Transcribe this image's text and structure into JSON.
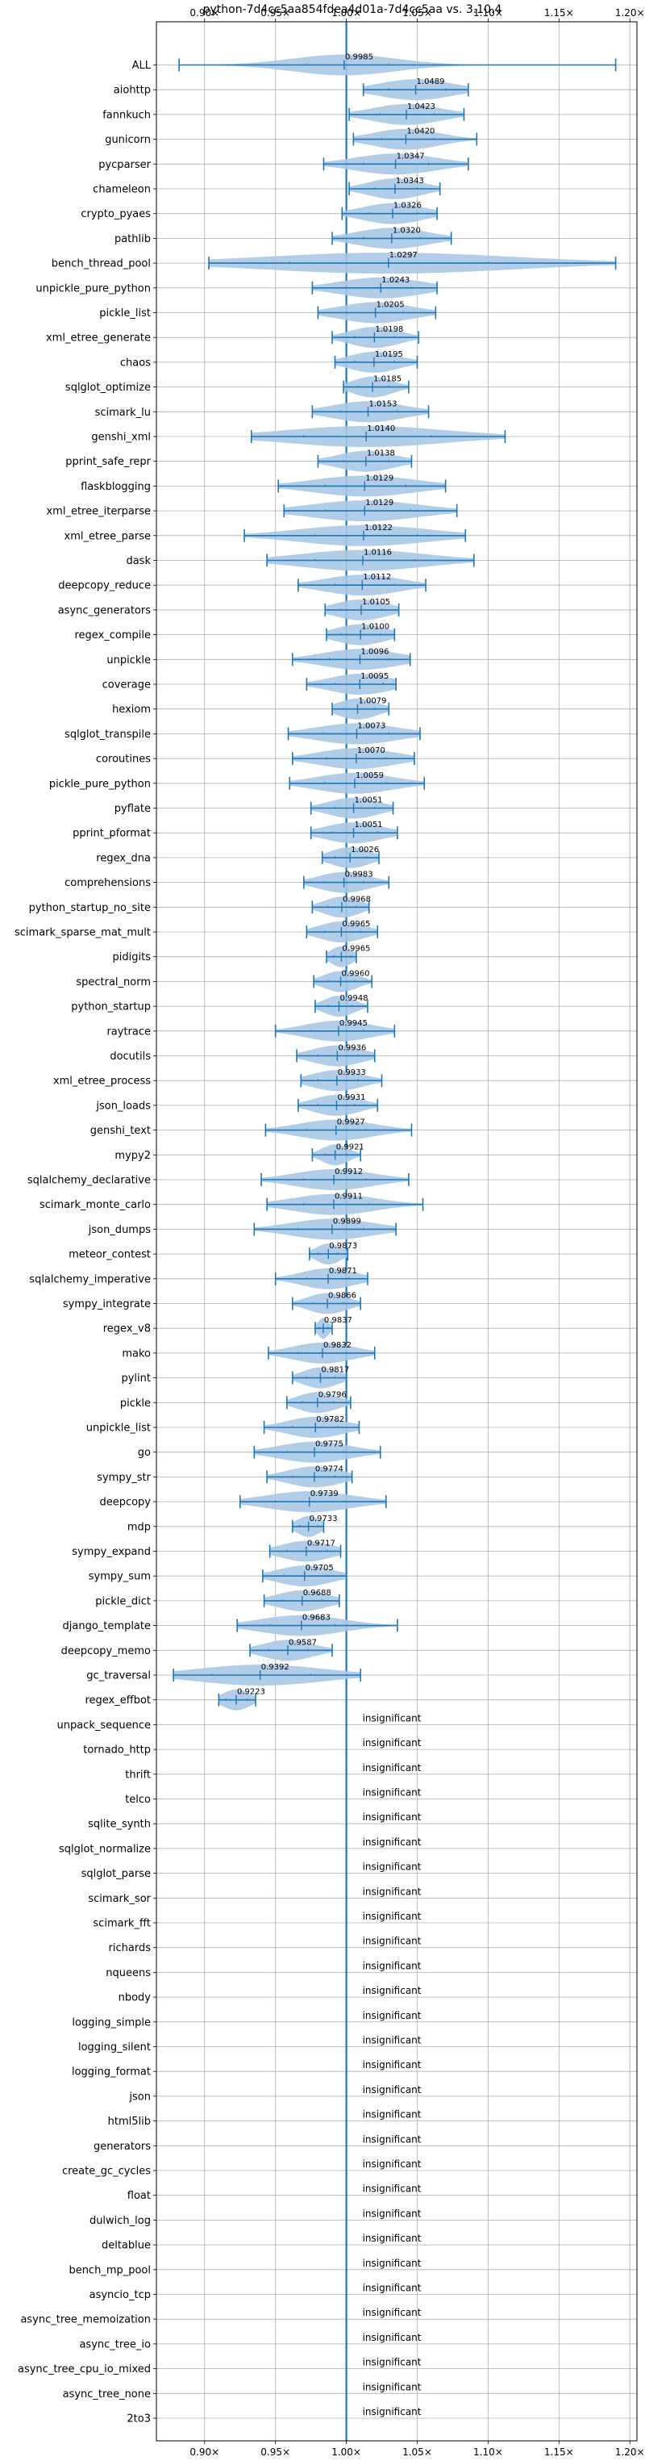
{
  "chart_data": {
    "type": "violin",
    "title": "python-7d4cc5aa854fdea4d01a-7d4cc5aa vs. 3.10.4",
    "xlabel": "",
    "ylabel": "",
    "xlim": [
      0.866,
      1.205
    ],
    "xticks": [
      0.9,
      0.95,
      1.0,
      1.05,
      1.1,
      1.15,
      1.2
    ],
    "xtick_labels": [
      "0.90×",
      "0.95×",
      "1.00×",
      "1.05×",
      "1.10×",
      "1.15×",
      "1.20×"
    ],
    "reference_line": 1.0,
    "grid": true,
    "colors": {
      "violin": "#a9c8e6",
      "line": "#1f77b4",
      "grid": "#b0b0b0"
    },
    "insignificant_label": "insignificant",
    "benchmarks": [
      {
        "name": "ALL",
        "label": "0.9985",
        "min": 0.882,
        "max": 1.19,
        "lo": 0.972,
        "hi": 1.03
      },
      {
        "name": "aiohttp",
        "label": "1.0489",
        "min": 1.012,
        "max": 1.086,
        "lo": 1.03,
        "hi": 1.07
      },
      {
        "name": "fannkuch",
        "label": "1.0423",
        "min": 1.002,
        "max": 1.083,
        "lo": 1.024,
        "hi": 1.062
      },
      {
        "name": "gunicorn",
        "label": "1.0420",
        "min": 1.005,
        "max": 1.092,
        "lo": 1.025,
        "hi": 1.062
      },
      {
        "name": "pycparser",
        "label": "1.0347",
        "min": 0.984,
        "max": 1.086,
        "lo": 1.012,
        "hi": 1.058
      },
      {
        "name": "chameleon",
        "label": "1.0343",
        "min": 1.002,
        "max": 1.066,
        "lo": 1.02,
        "hi": 1.05
      },
      {
        "name": "crypto_pyaes",
        "label": "1.0326",
        "min": 0.997,
        "max": 1.064,
        "lo": 1.016,
        "hi": 1.05
      },
      {
        "name": "pathlib",
        "label": "1.0320",
        "min": 0.99,
        "max": 1.074,
        "lo": 1.012,
        "hi": 1.052
      },
      {
        "name": "bench_thread_pool",
        "label": "1.0297",
        "min": 0.903,
        "max": 1.19,
        "lo": 0.96,
        "hi": 1.1
      },
      {
        "name": "unpickle_pure_python",
        "label": "1.0243",
        "min": 0.976,
        "max": 1.064,
        "lo": 1.0,
        "hi": 1.046
      },
      {
        "name": "pickle_list",
        "label": "1.0205",
        "min": 0.98,
        "max": 1.063,
        "lo": 1.0,
        "hi": 1.04
      },
      {
        "name": "xml_etree_generate",
        "label": "1.0198",
        "min": 0.99,
        "max": 1.051,
        "lo": 1.006,
        "hi": 1.034
      },
      {
        "name": "chaos",
        "label": "1.0195",
        "min": 0.992,
        "max": 1.05,
        "lo": 1.006,
        "hi": 1.034
      },
      {
        "name": "sqlglot_optimize",
        "label": "1.0185",
        "min": 0.998,
        "max": 1.044,
        "lo": 1.008,
        "hi": 1.03
      },
      {
        "name": "scimark_lu",
        "label": "1.0153",
        "min": 0.976,
        "max": 1.058,
        "lo": 0.996,
        "hi": 1.036
      },
      {
        "name": "genshi_xml",
        "label": "1.0140",
        "min": 0.933,
        "max": 1.112,
        "lo": 0.97,
        "hi": 1.06
      },
      {
        "name": "pprint_safe_repr",
        "label": "1.0138",
        "min": 0.98,
        "max": 1.046,
        "lo": 0.998,
        "hi": 1.03
      },
      {
        "name": "flaskblogging",
        "label": "1.0129",
        "min": 0.952,
        "max": 1.07,
        "lo": 0.985,
        "hi": 1.042
      },
      {
        "name": "xml_etree_iterparse",
        "label": "1.0129",
        "min": 0.956,
        "max": 1.078,
        "lo": 0.985,
        "hi": 1.045
      },
      {
        "name": "xml_etree_parse",
        "label": "1.0122",
        "min": 0.928,
        "max": 1.084,
        "lo": 0.978,
        "hi": 1.05
      },
      {
        "name": "dask",
        "label": "1.0116",
        "min": 0.944,
        "max": 1.09,
        "lo": 0.978,
        "hi": 1.048
      },
      {
        "name": "deepcopy_reduce",
        "label": "1.0112",
        "min": 0.966,
        "max": 1.056,
        "lo": 0.992,
        "hi": 1.034
      },
      {
        "name": "async_generators",
        "label": "1.0105",
        "min": 0.985,
        "max": 1.037,
        "lo": 0.996,
        "hi": 1.025
      },
      {
        "name": "regex_compile",
        "label": "1.0100",
        "min": 0.986,
        "max": 1.034,
        "lo": 0.996,
        "hi": 1.024
      },
      {
        "name": "unpickle",
        "label": "1.0096",
        "min": 0.962,
        "max": 1.045,
        "lo": 0.988,
        "hi": 1.03
      },
      {
        "name": "coverage",
        "label": "1.0095",
        "min": 0.972,
        "max": 1.035,
        "lo": 0.992,
        "hi": 1.026
      },
      {
        "name": "hexiom",
        "label": "1.0079",
        "min": 0.99,
        "max": 1.03,
        "lo": 0.998,
        "hi": 1.02
      },
      {
        "name": "sqlglot_transpile",
        "label": "1.0073",
        "min": 0.959,
        "max": 1.052,
        "lo": 0.984,
        "hi": 1.03
      },
      {
        "name": "coroutines",
        "label": "1.0070",
        "min": 0.962,
        "max": 1.048,
        "lo": 0.986,
        "hi": 1.028
      },
      {
        "name": "pickle_pure_python",
        "label": "1.0059",
        "min": 0.96,
        "max": 1.055,
        "lo": 0.985,
        "hi": 1.028
      },
      {
        "name": "pyflate",
        "label": "1.0051",
        "min": 0.975,
        "max": 1.033,
        "lo": 0.992,
        "hi": 1.02
      },
      {
        "name": "pprint_pformat",
        "label": "1.0051",
        "min": 0.975,
        "max": 1.036,
        "lo": 0.99,
        "hi": 1.022
      },
      {
        "name": "regex_dna",
        "label": "1.0026",
        "min": 0.983,
        "max": 1.023,
        "lo": 0.992,
        "hi": 1.014
      },
      {
        "name": "comprehensions",
        "label": "0.9983",
        "min": 0.97,
        "max": 1.03,
        "lo": 0.984,
        "hi": 1.012
      },
      {
        "name": "python_startup_no_site",
        "label": "0.9968",
        "min": 0.976,
        "max": 1.016,
        "lo": 0.987,
        "hi": 1.007
      },
      {
        "name": "scimark_sparse_mat_mult",
        "label": "0.9965",
        "min": 0.972,
        "max": 1.022,
        "lo": 0.985,
        "hi": 1.01
      },
      {
        "name": "pidigits",
        "label": "0.9965",
        "min": 0.986,
        "max": 1.007,
        "lo": 0.991,
        "hi": 1.003
      },
      {
        "name": "spectral_norm",
        "label": "0.9960",
        "min": 0.977,
        "max": 1.018,
        "lo": 0.987,
        "hi": 1.006
      },
      {
        "name": "python_startup",
        "label": "0.9948",
        "min": 0.978,
        "max": 1.015,
        "lo": 0.987,
        "hi": 1.004
      },
      {
        "name": "raytrace",
        "label": "0.9945",
        "min": 0.95,
        "max": 1.034,
        "lo": 0.975,
        "hi": 1.012
      },
      {
        "name": "docutils",
        "label": "0.9936",
        "min": 0.965,
        "max": 1.02,
        "lo": 0.98,
        "hi": 1.008
      },
      {
        "name": "xml_etree_process",
        "label": "0.9933",
        "min": 0.968,
        "max": 1.025,
        "lo": 0.98,
        "hi": 1.008
      },
      {
        "name": "json_loads",
        "label": "0.9931",
        "min": 0.966,
        "max": 1.022,
        "lo": 0.98,
        "hi": 1.006
      },
      {
        "name": "genshi_text",
        "label": "0.9927",
        "min": 0.943,
        "max": 1.046,
        "lo": 0.972,
        "hi": 1.014
      },
      {
        "name": "mypy2",
        "label": "0.9921",
        "min": 0.976,
        "max": 1.01,
        "lo": 0.985,
        "hi": 1.0
      },
      {
        "name": "sqlalchemy_declarative",
        "label": "0.9912",
        "min": 0.94,
        "max": 1.044,
        "lo": 0.97,
        "hi": 1.014
      },
      {
        "name": "scimark_monte_carlo",
        "label": "0.9911",
        "min": 0.944,
        "max": 1.054,
        "lo": 0.97,
        "hi": 1.016
      },
      {
        "name": "json_dumps",
        "label": "0.9899",
        "min": 0.935,
        "max": 1.035,
        "lo": 0.966,
        "hi": 1.012
      },
      {
        "name": "meteor_contest",
        "label": "0.9873",
        "min": 0.974,
        "max": 1.001,
        "lo": 0.98,
        "hi": 0.994
      },
      {
        "name": "sqlalchemy_imperative",
        "label": "0.9871",
        "min": 0.95,
        "max": 1.015,
        "lo": 0.972,
        "hi": 1.002
      },
      {
        "name": "sympy_integrate",
        "label": "0.9866",
        "min": 0.962,
        "max": 1.01,
        "lo": 0.976,
        "hi": 0.998
      },
      {
        "name": "regex_v8",
        "label": "0.9837",
        "min": 0.978,
        "max": 0.99,
        "lo": 0.981,
        "hi": 0.987
      },
      {
        "name": "mako",
        "label": "0.9832",
        "min": 0.945,
        "max": 1.02,
        "lo": 0.966,
        "hi": 1.0
      },
      {
        "name": "pylint",
        "label": "0.9817",
        "min": 0.962,
        "max": 1.0,
        "lo": 0.972,
        "hi": 0.992
      },
      {
        "name": "pickle",
        "label": "0.9796",
        "min": 0.958,
        "max": 1.003,
        "lo": 0.969,
        "hi": 0.991
      },
      {
        "name": "unpickle_list",
        "label": "0.9782",
        "min": 0.942,
        "max": 1.009,
        "lo": 0.962,
        "hi": 0.994
      },
      {
        "name": "go",
        "label": "0.9775",
        "min": 0.935,
        "max": 1.024,
        "lo": 0.958,
        "hi": 0.998
      },
      {
        "name": "sympy_str",
        "label": "0.9774",
        "min": 0.944,
        "max": 1.004,
        "lo": 0.962,
        "hi": 0.992
      },
      {
        "name": "deepcopy",
        "label": "0.9739",
        "min": 0.925,
        "max": 1.028,
        "lo": 0.95,
        "hi": 0.998
      },
      {
        "name": "mdp",
        "label": "0.9733",
        "min": 0.962,
        "max": 0.984,
        "lo": 0.967,
        "hi": 0.98
      },
      {
        "name": "sympy_expand",
        "label": "0.9717",
        "min": 0.946,
        "max": 0.996,
        "lo": 0.958,
        "hi": 0.986
      },
      {
        "name": "sympy_sum",
        "label": "0.9705",
        "min": 0.941,
        "max": 1.0,
        "lo": 0.956,
        "hi": 0.986
      },
      {
        "name": "pickle_dict",
        "label": "0.9688",
        "min": 0.942,
        "max": 0.995,
        "lo": 0.955,
        "hi": 0.983
      },
      {
        "name": "django_template",
        "label": "0.9683",
        "min": 0.923,
        "max": 1.036,
        "lo": 0.946,
        "hi": 0.992
      },
      {
        "name": "deepcopy_memo",
        "label": "0.9587",
        "min": 0.932,
        "max": 0.99,
        "lo": 0.945,
        "hi": 0.973
      },
      {
        "name": "gc_traversal",
        "label": "0.9392",
        "min": 0.878,
        "max": 1.01,
        "lo": 0.905,
        "hi": 0.975
      },
      {
        "name": "regex_effbot",
        "label": "0.9223",
        "min": 0.91,
        "max": 0.936,
        "lo": 0.915,
        "hi": 0.93
      },
      {
        "name": "unpack_sequence",
        "label": "insignificant"
      },
      {
        "name": "tornado_http",
        "label": "insignificant"
      },
      {
        "name": "thrift",
        "label": "insignificant"
      },
      {
        "name": "telco",
        "label": "insignificant"
      },
      {
        "name": "sqlite_synth",
        "label": "insignificant"
      },
      {
        "name": "sqlglot_normalize",
        "label": "insignificant"
      },
      {
        "name": "sqlglot_parse",
        "label": "insignificant"
      },
      {
        "name": "scimark_sor",
        "label": "insignificant"
      },
      {
        "name": "scimark_fft",
        "label": "insignificant"
      },
      {
        "name": "richards",
        "label": "insignificant"
      },
      {
        "name": "nqueens",
        "label": "insignificant"
      },
      {
        "name": "nbody",
        "label": "insignificant"
      },
      {
        "name": "logging_simple",
        "label": "insignificant"
      },
      {
        "name": "logging_silent",
        "label": "insignificant"
      },
      {
        "name": "logging_format",
        "label": "insignificant"
      },
      {
        "name": "json",
        "label": "insignificant"
      },
      {
        "name": "html5lib",
        "label": "insignificant"
      },
      {
        "name": "generators",
        "label": "insignificant"
      },
      {
        "name": "create_gc_cycles",
        "label": "insignificant"
      },
      {
        "name": "float",
        "label": "insignificant"
      },
      {
        "name": "dulwich_log",
        "label": "insignificant"
      },
      {
        "name": "deltablue",
        "label": "insignificant"
      },
      {
        "name": "bench_mp_pool",
        "label": "insignificant"
      },
      {
        "name": "asyncio_tcp",
        "label": "insignificant"
      },
      {
        "name": "async_tree_memoization",
        "label": "insignificant"
      },
      {
        "name": "async_tree_io",
        "label": "insignificant"
      },
      {
        "name": "async_tree_cpu_io_mixed",
        "label": "insignificant"
      },
      {
        "name": "async_tree_none",
        "label": "insignificant"
      },
      {
        "name": "2to3",
        "label": "insignificant"
      }
    ]
  }
}
